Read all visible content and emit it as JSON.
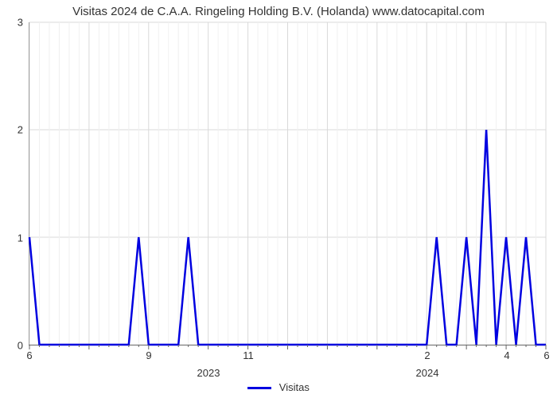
{
  "chart": {
    "type": "line",
    "title": "Visitas 2024 de C.A.A. Ringeling Holding B.V. (Holanda) www.datocapital.com",
    "title_fontsize": 15,
    "title_color": "#333333",
    "background_color": "#ffffff",
    "line_color": "#0000e0",
    "line_width": 2.5,
    "grid_color": "#d9d9d9",
    "minor_grid_color": "#f0f0f0",
    "axis_color": "#666666",
    "label_color": "#333333",
    "label_fontsize": 13,
    "y": {
      "min": 0,
      "max": 3,
      "ticks": [
        0,
        1,
        2,
        3
      ]
    },
    "x": {
      "n_points": 53,
      "major_ticks": [
        {
          "idx": 0,
          "label": "6"
        },
        {
          "idx": 6,
          "label": ""
        },
        {
          "idx": 12,
          "label": "9"
        },
        {
          "idx": 18,
          "label": ""
        },
        {
          "idx": 22,
          "label": "11"
        },
        {
          "idx": 26,
          "label": ""
        },
        {
          "idx": 30,
          "label": ""
        },
        {
          "idx": 35,
          "label": ""
        },
        {
          "idx": 40,
          "label": "2"
        },
        {
          "idx": 44,
          "label": ""
        },
        {
          "idx": 48,
          "label": "4"
        },
        {
          "idx": 52,
          "label": "6"
        }
      ],
      "sub_labels": [
        {
          "idx": 18,
          "text": "2023"
        },
        {
          "idx": 40,
          "text": "2024"
        }
      ]
    },
    "series": {
      "name": "Visitas",
      "values": [
        1,
        0,
        0,
        0,
        0,
        0,
        0,
        0,
        0,
        0,
        0,
        1,
        0,
        0,
        0,
        0,
        1,
        0,
        0,
        0,
        0,
        0,
        0,
        0,
        0,
        0,
        0,
        0,
        0,
        0,
        0,
        0,
        0,
        0,
        0,
        0,
        0,
        0,
        0,
        0,
        0,
        1,
        0,
        0,
        1,
        0,
        2,
        0,
        1,
        0,
        1,
        0,
        0
      ]
    },
    "legend": {
      "swatch_width": 30
    }
  }
}
